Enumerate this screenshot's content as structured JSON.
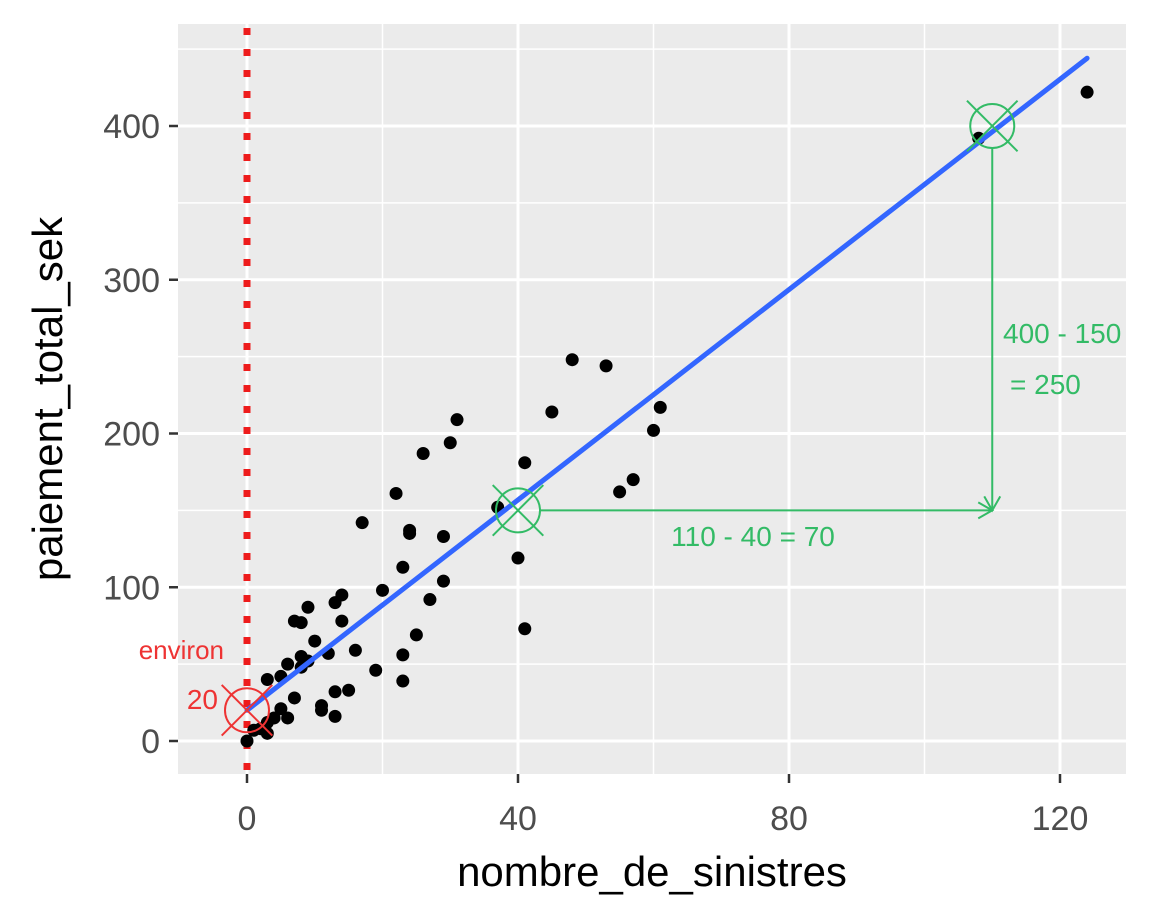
{
  "chart_data": {
    "type": "scatter",
    "title": "",
    "xlabel": "nombre_de_sinistres",
    "ylabel": "paiement_total_sek",
    "xlim": [
      -10,
      130
    ],
    "ylim": [
      -22,
      460
    ],
    "x_ticks": [
      0,
      40,
      80,
      120
    ],
    "y_ticks": [
      0,
      100,
      200,
      300,
      400
    ],
    "x_tick_labels": [
      "0",
      "40",
      "80",
      "120"
    ],
    "y_tick_labels": [
      "0",
      "100",
      "200",
      "300",
      "400"
    ],
    "grid": true,
    "background": "#ebebeb",
    "points": [
      [
        0,
        0
      ],
      [
        1,
        7
      ],
      [
        2,
        8
      ],
      [
        3,
        5
      ],
      [
        3,
        12
      ],
      [
        3,
        40
      ],
      [
        4,
        15
      ],
      [
        5,
        21
      ],
      [
        5,
        42
      ],
      [
        6,
        15
      ],
      [
        6,
        50
      ],
      [
        7,
        28
      ],
      [
        7,
        78
      ],
      [
        8,
        48
      ],
      [
        8,
        55
      ],
      [
        8,
        77
      ],
      [
        9,
        52
      ],
      [
        9,
        87
      ],
      [
        10,
        65
      ],
      [
        11,
        23
      ],
      [
        11,
        20
      ],
      [
        12,
        57
      ],
      [
        13,
        16
      ],
      [
        13,
        32
      ],
      [
        13,
        90
      ],
      [
        14,
        78
      ],
      [
        14,
        95
      ],
      [
        15,
        33
      ],
      [
        16,
        59
      ],
      [
        17,
        142
      ],
      [
        19,
        46
      ],
      [
        20,
        98
      ],
      [
        22,
        161
      ],
      [
        23,
        113
      ],
      [
        23,
        56
      ],
      [
        23,
        39
      ],
      [
        24,
        135
      ],
      [
        24,
        137
      ],
      [
        25,
        69
      ],
      [
        26,
        187
      ],
      [
        27,
        92
      ],
      [
        29,
        133
      ],
      [
        29,
        104
      ],
      [
        30,
        194
      ],
      [
        31,
        209
      ],
      [
        37,
        152
      ],
      [
        40,
        119
      ],
      [
        41,
        181
      ],
      [
        41,
        73
      ],
      [
        45,
        214
      ],
      [
        48,
        248
      ],
      [
        53,
        244
      ],
      [
        55,
        162
      ],
      [
        57,
        170
      ],
      [
        60,
        202
      ],
      [
        61,
        217
      ],
      [
        108,
        392
      ],
      [
        124,
        422
      ]
    ],
    "regression_line": {
      "intercept": 20,
      "slope": 3.42,
      "x_range": [
        0,
        124
      ],
      "color": "#3366ff"
    },
    "vline": {
      "x": 0,
      "color": "#ee1c1c",
      "style": "dotted"
    },
    "annotations": {
      "intercept": {
        "x": 0,
        "y": 20,
        "line1": "environ",
        "line2": "20",
        "color": "#ee3333"
      },
      "point_a": {
        "x": 40,
        "y": 150
      },
      "point_b": {
        "x": 110,
        "y": 400
      },
      "run_label": "110 - 40 = 70",
      "rise_label_line1": "400 - 150",
      "rise_label_line2": "= 250",
      "color": "#33bb66"
    }
  }
}
